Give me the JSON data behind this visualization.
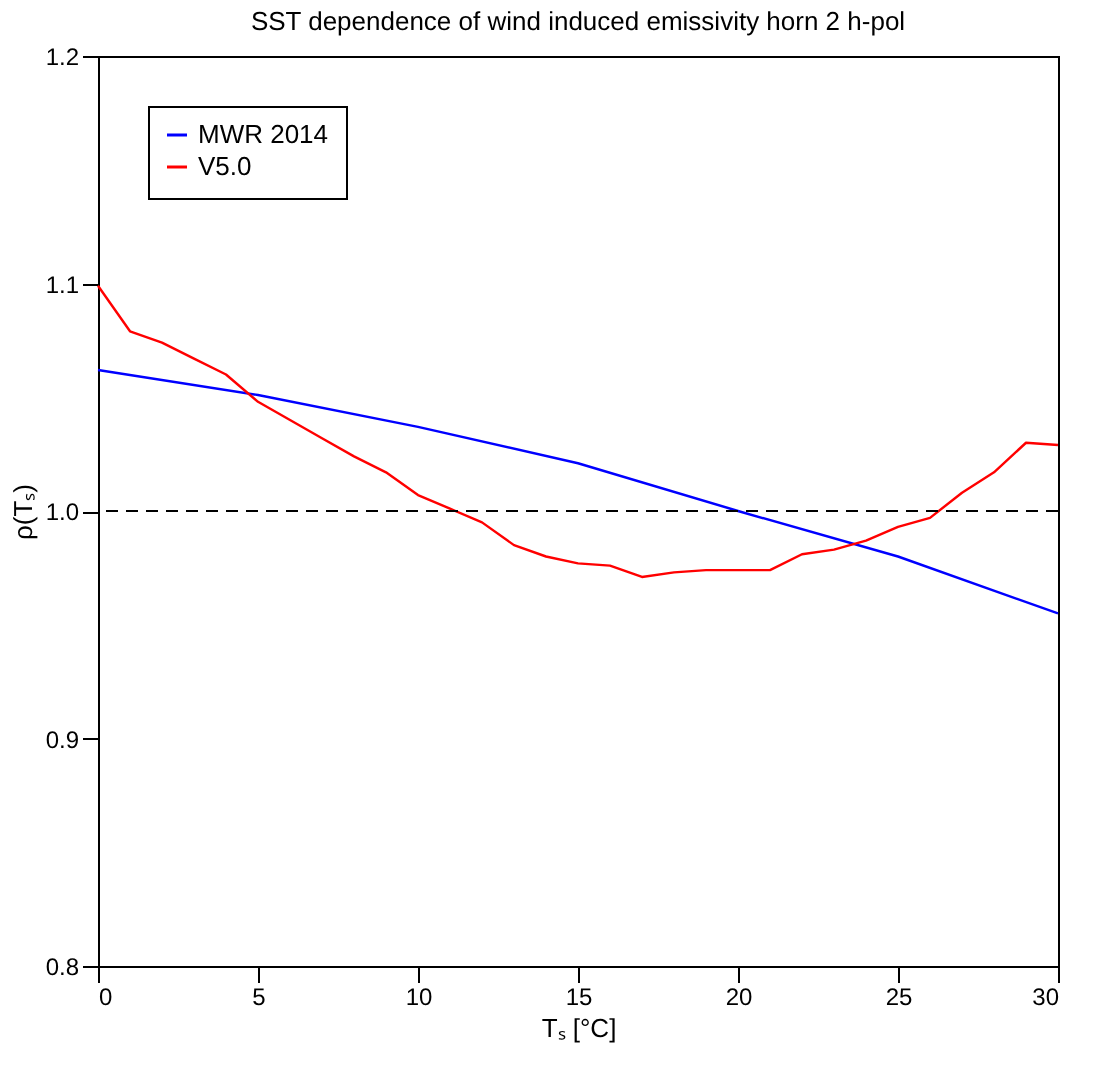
{
  "chart_data": {
    "type": "line",
    "title": "SST dependence of wind induced emissivity  horn 2  h-pol",
    "xlabel": "Tₛ [°C]",
    "ylabel": "ρ(Tₛ)",
    "x": [
      0,
      1,
      2,
      3,
      4,
      5,
      6,
      7,
      8,
      9,
      10,
      11,
      12,
      13,
      14,
      15,
      16,
      17,
      18,
      19,
      20,
      21,
      22,
      23,
      24,
      25,
      26,
      27,
      28,
      29,
      30
    ],
    "series": [
      {
        "name": "MWR 2014",
        "color": "#0000ff",
        "x": [
          0,
          5,
          10,
          15,
          20,
          25,
          30
        ],
        "values": [
          1.062,
          1.051,
          1.037,
          1.021,
          1.0,
          0.98,
          0.955
        ]
      },
      {
        "name": "V5.0",
        "color": "#ff0000",
        "values": [
          1.099,
          1.079,
          1.074,
          1.067,
          1.06,
          1.048,
          1.04,
          1.032,
          1.024,
          1.017,
          1.007,
          1.001,
          0.995,
          0.985,
          0.98,
          0.977,
          0.976,
          0.971,
          0.973,
          0.974,
          0.974,
          0.974,
          0.981,
          0.983,
          0.987,
          0.993,
          0.997,
          1.008,
          1.017,
          1.03,
          1.029
        ]
      }
    ],
    "xlim": [
      0,
      30
    ],
    "xticks": [
      0,
      5,
      10,
      15,
      20,
      25,
      30
    ],
    "ylim": [
      0.8,
      1.2
    ],
    "yticks": [
      {
        "value": 0.8,
        "label": "0.8"
      },
      {
        "value": 0.9,
        "label": "0.9"
      },
      {
        "value": 1.0,
        "label": "1.0"
      },
      {
        "value": 1.1,
        "label": "1.1"
      },
      {
        "value": 1.2,
        "label": "1.2"
      }
    ],
    "ref_lines": [
      {
        "axis": "y",
        "value": 1.0,
        "color": "#000000",
        "line_style": "dashed"
      }
    ],
    "grid": false,
    "legend": "top left",
    "line_style": "solid",
    "marker": "none"
  }
}
